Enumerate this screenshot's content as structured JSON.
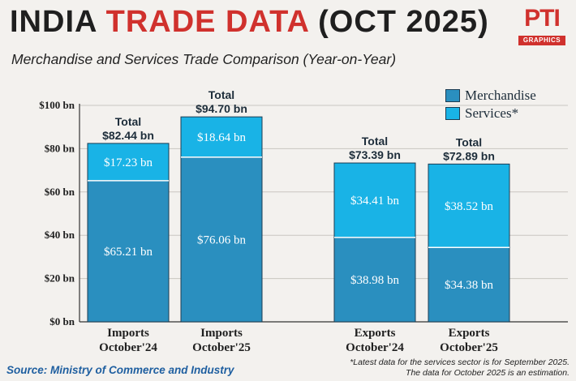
{
  "header": {
    "title_part1": "INDIA",
    "title_part2": "TRADE DATA",
    "title_part3": "(OCT 2025)",
    "subtitle": "Merchandise and Services Trade Comparison (Year-on-Year)"
  },
  "logo": {
    "mark": "PTI",
    "sub": "GRAPHICS"
  },
  "source": "Source: Ministry of Commerce and Industry",
  "footnote": [
    "*Latest data for the services sector is for September 2025.",
    "The data for October 2025 is an estimation."
  ],
  "colors": {
    "merchandise": "#2a8fbf",
    "services": "#19b3e6",
    "title_accent": "#d0312d"
  },
  "chart_data": {
    "type": "bar",
    "stacked": true,
    "title": "",
    "xlabel": "",
    "ylabel": "",
    "ylim": [
      0,
      100
    ],
    "yticks": [
      "$0 bn",
      "$20 bn",
      "$40 bn",
      "$60 bn",
      "$80 bn",
      "$100 bn"
    ],
    "categories": [
      [
        "Imports",
        "October'24"
      ],
      [
        "Imports",
        "October'25"
      ],
      [
        "Exports",
        "October'24"
      ],
      [
        "Exports",
        "October'25"
      ]
    ],
    "series": [
      {
        "name": "Merchandise",
        "values": [
          65.21,
          76.06,
          38.98,
          34.38
        ],
        "labels": [
          "$65.21 bn",
          "$76.06 bn",
          "$38.98 bn",
          "$34.38 bn"
        ]
      },
      {
        "name": "Services*",
        "values": [
          17.23,
          18.64,
          34.41,
          38.52
        ],
        "labels": [
          "$17.23 bn",
          "$18.64 bn",
          "$34.41 bn",
          "$38.52 bn"
        ]
      }
    ],
    "totals": [
      {
        "label": "Total",
        "value": "$82.44 bn"
      },
      {
        "label": "Total",
        "value": "$94.70 bn"
      },
      {
        "label": "Total",
        "value": "$73.39 bn"
      },
      {
        "label": "Total",
        "value": "$72.89 bn"
      }
    ],
    "legend_position": "top-right",
    "grid": true
  }
}
